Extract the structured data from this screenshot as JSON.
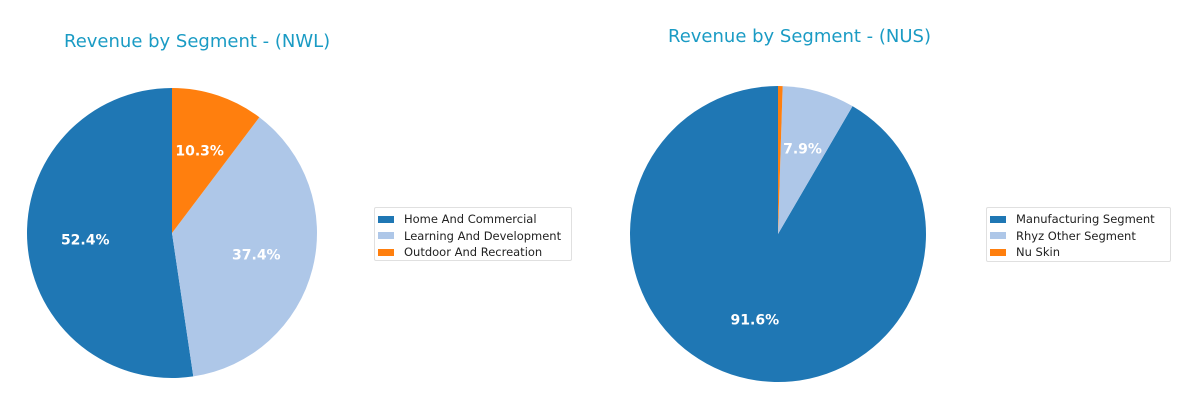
{
  "colors": {
    "title": "#1a9bc4",
    "series": [
      "#1f77b4",
      "#aec7e8",
      "#ff7f0e"
    ]
  },
  "chart_data": [
    {
      "type": "pie",
      "title": "Revenue by Segment - (NWL)",
      "labels": [
        "Home And Commercial",
        "Learning And Development",
        "Outdoor And Recreation"
      ],
      "values": [
        52.4,
        37.4,
        10.3
      ],
      "value_labels": [
        "52.4%",
        "37.4%",
        "10.3%"
      ],
      "colors": [
        "#1f77b4",
        "#aec7e8",
        "#ff7f0e"
      ],
      "start_angle": 90,
      "direction": "counterclockwise",
      "legend_position": "right"
    },
    {
      "type": "pie",
      "title": "Revenue by Segment - (NUS)",
      "labels": [
        "Manufacturing Segment",
        "Rhyz Other Segment",
        "Nu Skin"
      ],
      "values": [
        91.6,
        7.9,
        0.5
      ],
      "value_labels": [
        "91.6%",
        "7.9%",
        ""
      ],
      "colors": [
        "#1f77b4",
        "#aec7e8",
        "#ff7f0e"
      ],
      "start_angle": 90,
      "direction": "counterclockwise",
      "legend_position": "right"
    }
  ]
}
